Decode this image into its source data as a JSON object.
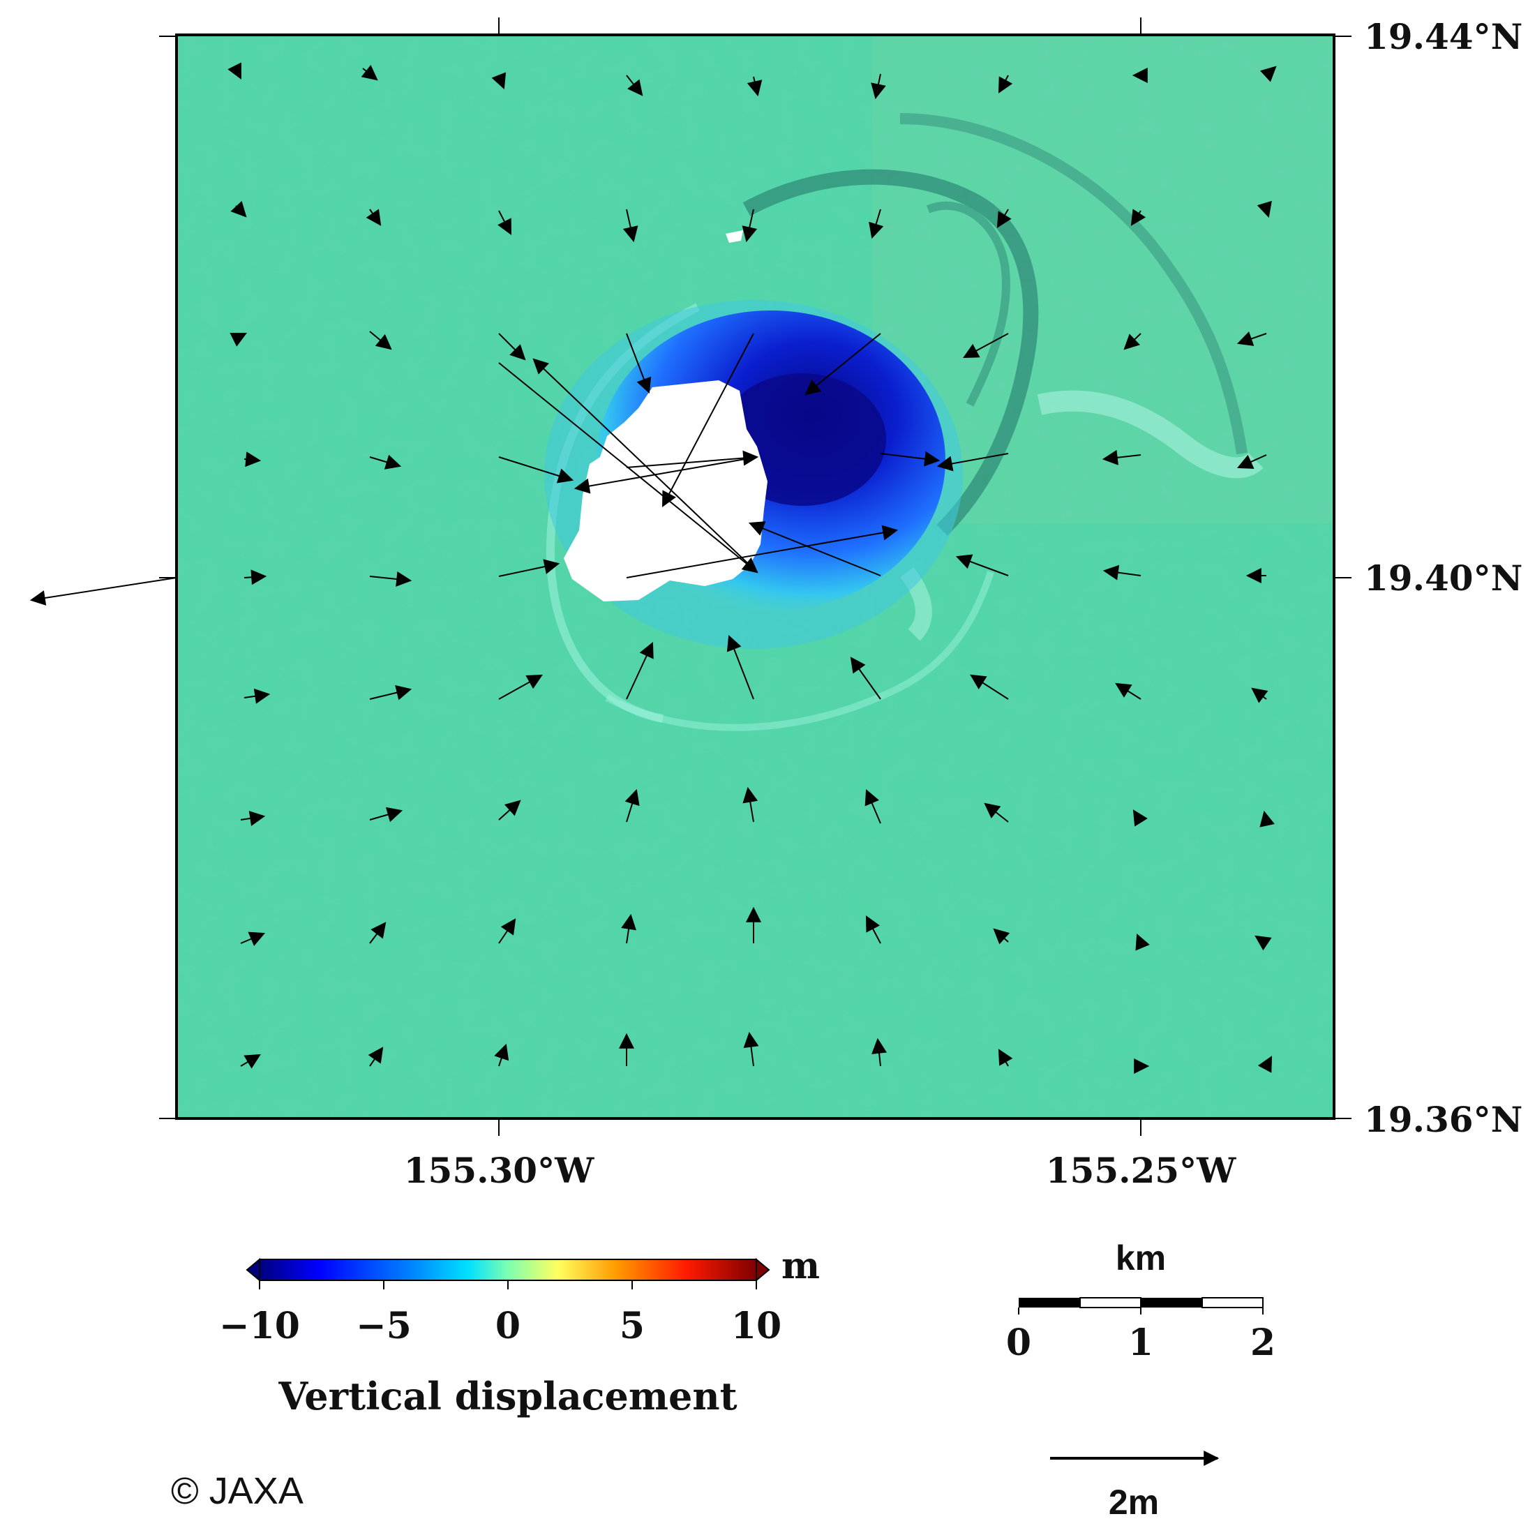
{
  "map": {
    "lat_labels": [
      "19.44°N",
      "19.40°N",
      "19.36°N"
    ],
    "lon_labels": [
      "155.30°W",
      "155.25°W"
    ]
  },
  "colorbar": {
    "title": "Vertical displacement",
    "unit": "m",
    "ticks": [
      "−10",
      "−5",
      "0",
      "5",
      "10"
    ],
    "range": [
      -10,
      10
    ],
    "colors": [
      "#00007f",
      "#0000ff",
      "#00c8ff",
      "#66ffcc",
      "#ffff66",
      "#ff8800",
      "#ff0000",
      "#7f0000"
    ]
  },
  "scale_bar": {
    "unit": "km",
    "ticks": [
      "0",
      "1",
      "2"
    ]
  },
  "vector_legend": {
    "label": "2m"
  },
  "credit": "© JAXA",
  "colors": {
    "background_terrain": "#4fd6a8",
    "collapse_deep": "#0a0a9a",
    "collapse_mid": "#1e5cff",
    "collapse_edge": "#3fd8e8",
    "no_data": "#ffffff",
    "arrow": "#000000"
  }
}
